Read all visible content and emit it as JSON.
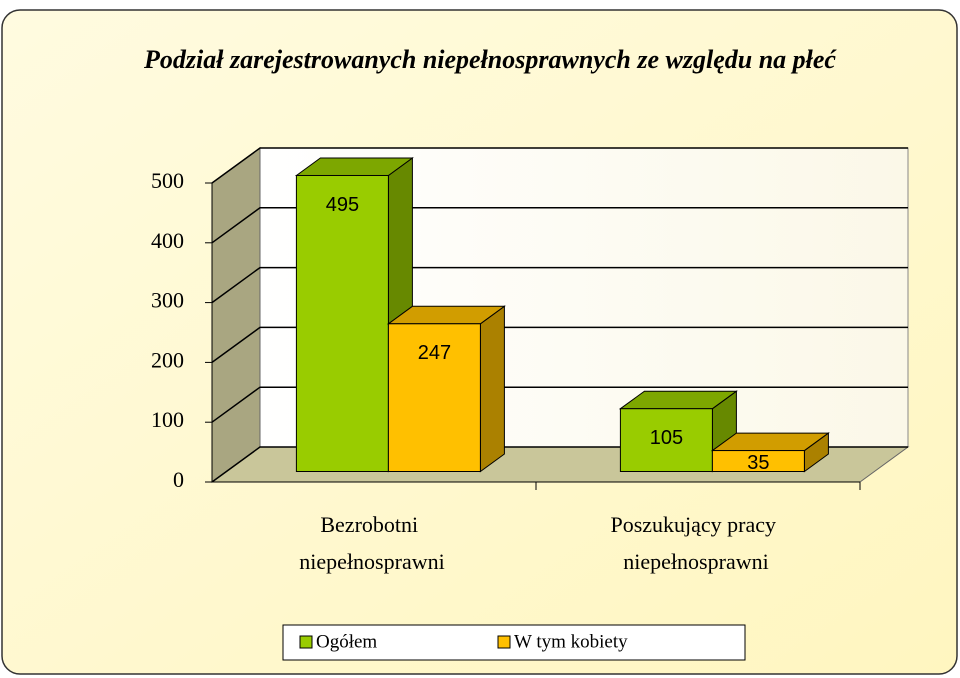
{
  "chart_data": {
    "type": "bar3d",
    "title": "Podział zarejestrowanych niepełnosprawnych ze względu na płeć",
    "categories": [
      "Bezrobotni niepełnosprawni",
      "Poszukujący pracy niepełnosprawni"
    ],
    "series": [
      {
        "name": "Ogółem",
        "color": "#99cc00",
        "values": [
          495,
          105
        ]
      },
      {
        "name": "W tym kobiety",
        "color": "#ffc000",
        "values": [
          247,
          35
        ]
      }
    ],
    "ylim": [
      0,
      500
    ],
    "yticks": [
      0,
      100,
      200,
      300,
      400,
      500
    ],
    "grid": true,
    "legend": "bottom"
  }
}
